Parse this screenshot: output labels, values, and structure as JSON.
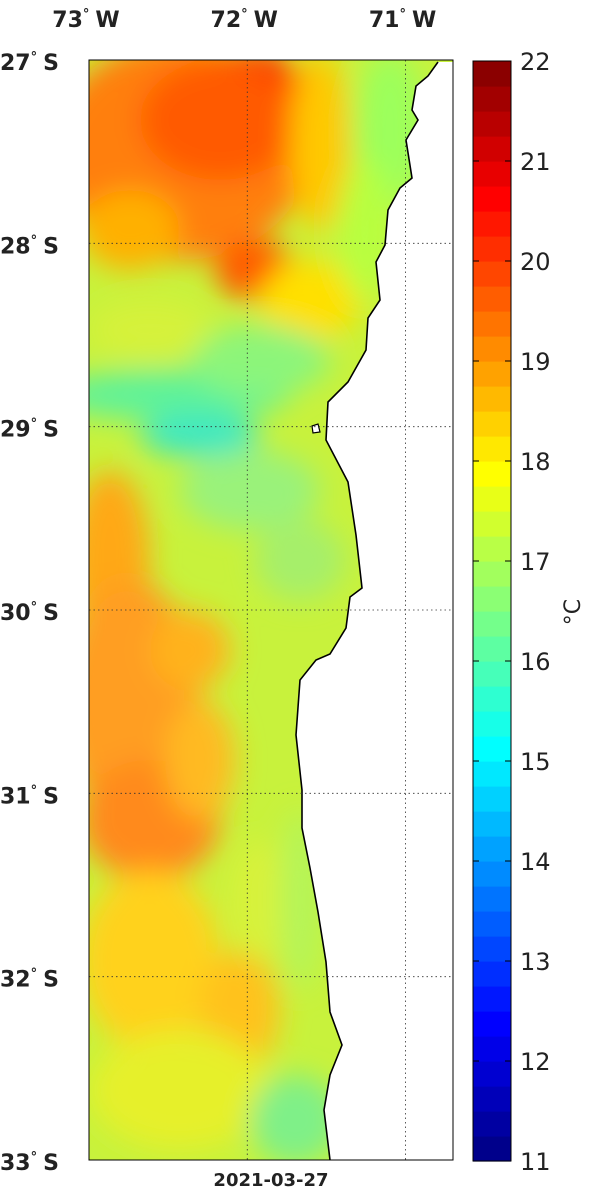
{
  "map": {
    "date_label": "2021-03-27",
    "units_label": "°C",
    "lon_ticks": [
      {
        "deg": "73",
        "hem": "W",
        "value": -73
      },
      {
        "deg": "72",
        "hem": "W",
        "value": -72
      },
      {
        "deg": "71",
        "hem": "W",
        "value": -71
      }
    ],
    "lat_ticks": [
      {
        "deg": "27",
        "hem": "S",
        "value": -27
      },
      {
        "deg": "28",
        "hem": "S",
        "value": -28
      },
      {
        "deg": "29",
        "hem": "S",
        "value": -29
      },
      {
        "deg": "30",
        "hem": "S",
        "value": -30
      },
      {
        "deg": "31",
        "hem": "S",
        "value": -31
      },
      {
        "deg": "32",
        "hem": "S",
        "value": -32
      },
      {
        "deg": "33",
        "hem": "S",
        "value": -33
      }
    ],
    "lon_range": [
      -73,
      -70.7
    ],
    "lat_range": [
      -33,
      -27
    ],
    "grid": "dotted"
  },
  "colorbar": {
    "min": 11,
    "max": 22,
    "ticks": [
      "22",
      "21",
      "20",
      "19",
      "18",
      "17",
      "16",
      "15",
      "14",
      "13",
      "12",
      "11"
    ],
    "colormap": "jet",
    "levels": 44
  },
  "colors": {
    "land": "#ffffff",
    "coastline": "#000000",
    "grid": "#333333"
  }
}
